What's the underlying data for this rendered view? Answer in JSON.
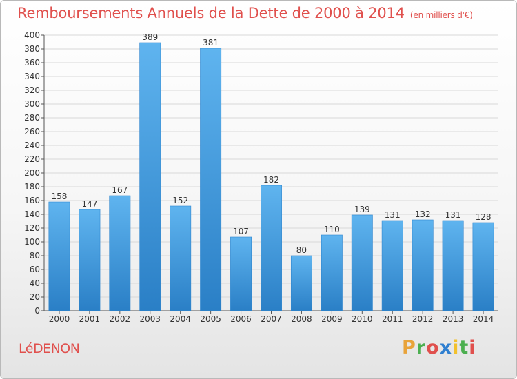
{
  "header": {
    "title": "Remboursements Annuels de la Dette de 2000 à 2014",
    "unit": "(en milliers d'€)"
  },
  "footer": {
    "commune": "LéDENON",
    "brand": "Proxiti"
  },
  "colors": {
    "title": "#e0504d",
    "bar_light": "#5fb4ef",
    "bar_dark": "#2a7fc6",
    "grid": "#d8d8d8",
    "brand_letters": [
      "#e8a33a",
      "#4caf50",
      "#e0504d",
      "#2f7fd0",
      "#f2c12e",
      "#4caf50",
      "#e0504d"
    ]
  },
  "chart_data": {
    "type": "bar",
    "title": "Remboursements Annuels de la Dette de 2000 à 2014",
    "subtitle": "(en milliers d'€)",
    "categories": [
      "2000",
      "2001",
      "2002",
      "2003",
      "2004",
      "2005",
      "2006",
      "2007",
      "2008",
      "2009",
      "2010",
      "2011",
      "2012",
      "2013",
      "2014"
    ],
    "values": [
      158,
      147,
      167,
      389,
      152,
      381,
      107,
      182,
      80,
      110,
      139,
      131,
      132,
      131,
      128
    ],
    "ylim": [
      0,
      400
    ],
    "yticks": [
      0,
      20,
      40,
      60,
      80,
      100,
      120,
      140,
      160,
      180,
      200,
      220,
      240,
      260,
      280,
      300,
      320,
      340,
      360,
      380,
      400
    ],
    "grid": true,
    "data_labels": true
  }
}
